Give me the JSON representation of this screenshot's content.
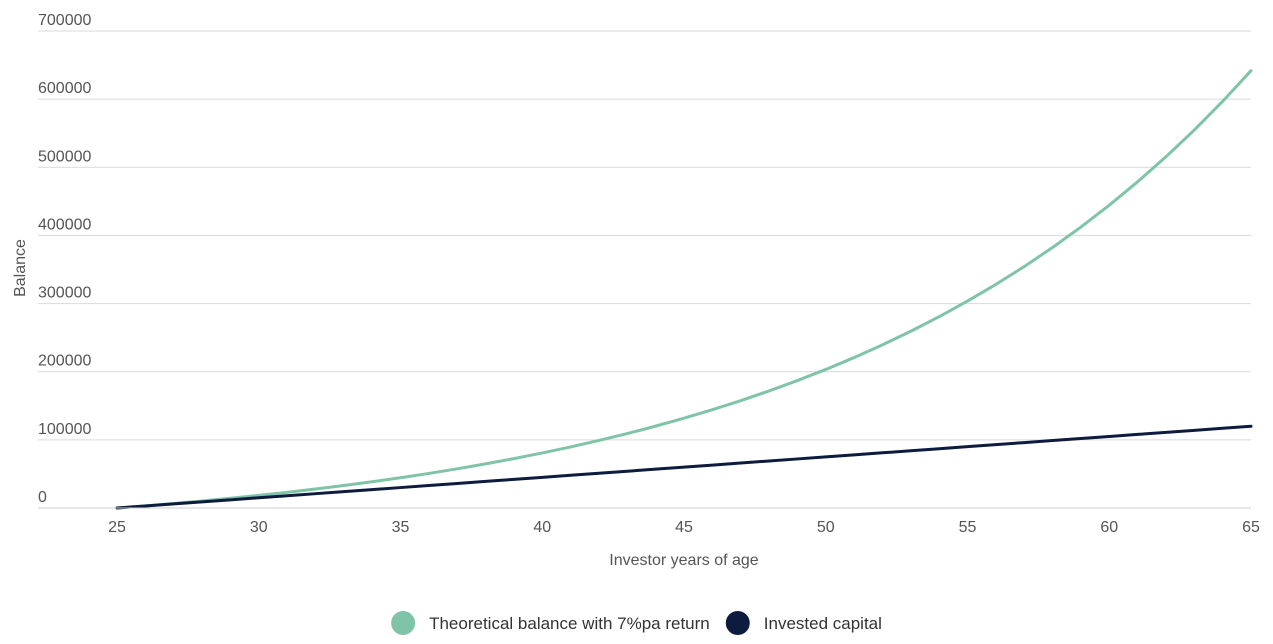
{
  "chart_data": {
    "type": "line",
    "title": "",
    "xlabel": "Investor years of age",
    "ylabel": "Balance",
    "xlim": [
      25,
      65
    ],
    "ylim": [
      0,
      700000
    ],
    "x_ticks": [
      25,
      30,
      35,
      40,
      45,
      50,
      55,
      60,
      65
    ],
    "y_ticks": [
      0,
      100000,
      200000,
      300000,
      400000,
      500000,
      600000,
      700000
    ],
    "x_tick_labels": [
      "25",
      "30",
      "35",
      "40",
      "45",
      "50",
      "55",
      "60",
      "65"
    ],
    "y_tick_labels": [
      "0",
      "100000",
      "200000",
      "300000",
      "400000",
      "500000",
      "600000",
      "700000"
    ],
    "grid": "horizontal",
    "legend_position": "bottom-center",
    "x": [
      25,
      26,
      27,
      28,
      29,
      30,
      31,
      32,
      33,
      34,
      35,
      36,
      37,
      38,
      39,
      40,
      41,
      42,
      43,
      44,
      45,
      46,
      47,
      48,
      49,
      50,
      51,
      52,
      53,
      54,
      55,
      56,
      57,
      58,
      59,
      60,
      61,
      62,
      63,
      64,
      65
    ],
    "series": [
      {
        "name": "Theoretical balance with 7%pa return",
        "color": "#7fc4a6",
        "values": [
          0,
          3214,
          6653,
          10333,
          14271,
          18483,
          22992,
          27816,
          32977,
          38500,
          44410,
          50733,
          57499,
          64739,
          72486,
          80775,
          89644,
          99134,
          109288,
          120153,
          131779,
          144218,
          157529,
          171771,
          187010,
          203316,
          220763,
          239430,
          259405,
          280778,
          303647,
          328117,
          354300,
          382316,
          412293,
          444369,
          478690,
          515412,
          554706,
          596751,
          641738
        ]
      },
      {
        "name": "Invested capital",
        "color": "#0d1b3e",
        "values": [
          0,
          3000,
          6000,
          9000,
          12000,
          15000,
          18000,
          21000,
          24000,
          27000,
          30000,
          33000,
          36000,
          39000,
          42000,
          45000,
          48000,
          51000,
          54000,
          57000,
          60000,
          63000,
          66000,
          69000,
          72000,
          75000,
          78000,
          81000,
          84000,
          87000,
          90000,
          93000,
          96000,
          99000,
          102000,
          105000,
          108000,
          111000,
          114000,
          117000,
          120000
        ]
      }
    ]
  }
}
